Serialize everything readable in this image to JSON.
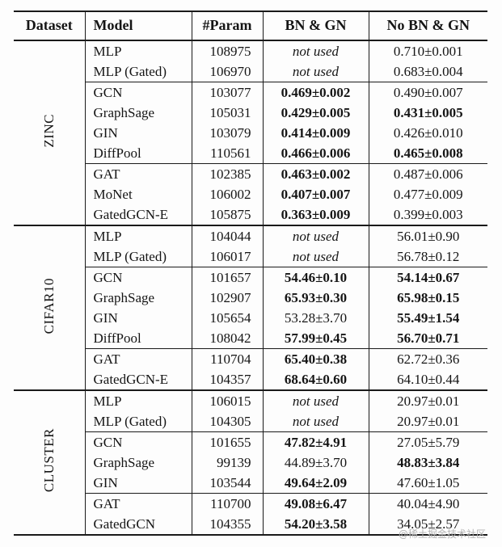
{
  "page": {
    "watermark": "@稀土掘金技术社区"
  },
  "table": {
    "headers": [
      "Dataset",
      "Model",
      "#Param",
      "BN & GN",
      "No BN & GN"
    ],
    "sections": [
      {
        "dataset": "ZINC",
        "groups": [
          {
            "rows": [
              {
                "model": "MLP",
                "param": "108975",
                "bn": {
                  "text": "not used",
                  "italic": true
                },
                "nobn": {
                  "text": "0.710±0.001"
                }
              },
              {
                "model": "MLP (Gated)",
                "param": "106970",
                "bn": {
                  "text": "not used",
                  "italic": true
                },
                "nobn": {
                  "text": "0.683±0.004"
                }
              }
            ]
          },
          {
            "rows": [
              {
                "model": "GCN",
                "param": "103077",
                "bn": {
                  "text": "0.469±0.002",
                  "bold": true
                },
                "nobn": {
                  "text": "0.490±0.007"
                }
              },
              {
                "model": "GraphSage",
                "param": "105031",
                "bn": {
                  "text": "0.429±0.005",
                  "bold": true
                },
                "nobn": {
                  "text": "0.431±0.005",
                  "bold": true
                }
              },
              {
                "model": "GIN",
                "param": "103079",
                "bn": {
                  "text": "0.414±0.009",
                  "bold": true
                },
                "nobn": {
                  "text": "0.426±0.010"
                }
              },
              {
                "model": "DiffPool",
                "param": "110561",
                "bn": {
                  "text": "0.466±0.006",
                  "bold": true
                },
                "nobn": {
                  "text": "0.465±0.008",
                  "bold": true
                }
              }
            ]
          },
          {
            "rows": [
              {
                "model": "GAT",
                "param": "102385",
                "bn": {
                  "text": "0.463±0.002",
                  "bold": true
                },
                "nobn": {
                  "text": "0.487±0.006"
                }
              },
              {
                "model": "MoNet",
                "param": "106002",
                "bn": {
                  "text": "0.407±0.007",
                  "bold": true
                },
                "nobn": {
                  "text": "0.477±0.009"
                }
              },
              {
                "model": "GatedGCN-E",
                "param": "105875",
                "bn": {
                  "text": "0.363±0.009",
                  "bold": true
                },
                "nobn": {
                  "text": "0.399±0.003"
                }
              }
            ]
          }
        ]
      },
      {
        "dataset": "CIFAR10",
        "groups": [
          {
            "rows": [
              {
                "model": "MLP",
                "param": "104044",
                "bn": {
                  "text": "not used",
                  "italic": true
                },
                "nobn": {
                  "text": "56.01±0.90"
                }
              },
              {
                "model": "MLP (Gated)",
                "param": "106017",
                "bn": {
                  "text": "not used",
                  "italic": true
                },
                "nobn": {
                  "text": "56.78±0.12"
                }
              }
            ]
          },
          {
            "rows": [
              {
                "model": "GCN",
                "param": "101657",
                "bn": {
                  "text": "54.46±0.10",
                  "bold": true
                },
                "nobn": {
                  "text": "54.14±0.67",
                  "bold": true
                }
              },
              {
                "model": "GraphSage",
                "param": "102907",
                "bn": {
                  "text": "65.93±0.30",
                  "bold": true
                },
                "nobn": {
                  "text": "65.98±0.15",
                  "bold": true
                }
              },
              {
                "model": "GIN",
                "param": "105654",
                "bn": {
                  "text": "53.28±3.70"
                },
                "nobn": {
                  "text": "55.49±1.54",
                  "bold": true
                }
              },
              {
                "model": "DiffPool",
                "param": "108042",
                "bn": {
                  "text": "57.99±0.45",
                  "bold": true
                },
                "nobn": {
                  "text": "56.70±0.71",
                  "bold": true
                }
              }
            ]
          },
          {
            "rows": [
              {
                "model": "GAT",
                "param": "110704",
                "bn": {
                  "text": "65.40±0.38",
                  "bold": true
                },
                "nobn": {
                  "text": "62.72±0.36"
                }
              },
              {
                "model": "GatedGCN-E",
                "param": "104357",
                "bn": {
                  "text": "68.64±0.60",
                  "bold": true
                },
                "nobn": {
                  "text": "64.10±0.44"
                }
              }
            ]
          }
        ]
      },
      {
        "dataset": "CLUSTER",
        "groups": [
          {
            "rows": [
              {
                "model": "MLP",
                "param": "106015",
                "bn": {
                  "text": "not used",
                  "italic": true
                },
                "nobn": {
                  "text": "20.97±0.01"
                }
              },
              {
                "model": "MLP (Gated)",
                "param": "104305",
                "bn": {
                  "text": "not used",
                  "italic": true
                },
                "nobn": {
                  "text": "20.97±0.01"
                }
              }
            ]
          },
          {
            "rows": [
              {
                "model": "GCN",
                "param": "101655",
                "bn": {
                  "text": "47.82±4.91",
                  "bold": true
                },
                "nobn": {
                  "text": "27.05±5.79"
                }
              },
              {
                "model": "GraphSage",
                "param": "99139",
                "bn": {
                  "text": "44.89±3.70"
                },
                "nobn": {
                  "text": "48.83±3.84",
                  "bold": true
                }
              },
              {
                "model": "GIN",
                "param": "103544",
                "bn": {
                  "text": "49.64±2.09",
                  "bold": true
                },
                "nobn": {
                  "text": "47.60±1.05"
                }
              }
            ]
          },
          {
            "rows": [
              {
                "model": "GAT",
                "param": "110700",
                "bn": {
                  "text": "49.08±6.47",
                  "bold": true
                },
                "nobn": {
                  "text": "40.04±4.90"
                }
              },
              {
                "model": "GatedGCN",
                "param": "104355",
                "bn": {
                  "text": "54.20±3.58",
                  "bold": true
                },
                "nobn": {
                  "text": "34.05±2.57"
                }
              }
            ]
          }
        ]
      }
    ]
  }
}
